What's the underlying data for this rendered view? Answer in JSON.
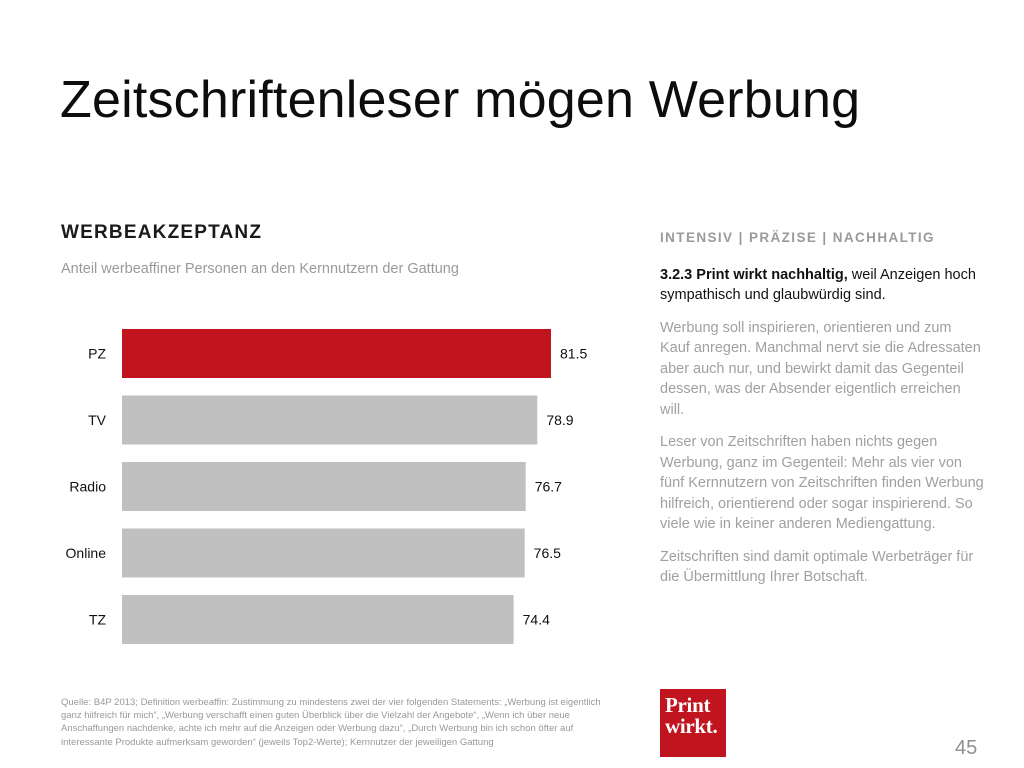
{
  "slide": {
    "title": "Zeitschriftenleser mögen Werbung",
    "page_number": "45"
  },
  "chart_section": {
    "heading": "WERBEAKZEPTANZ",
    "subtitle": "Anteil werbeaffiner Personen an den Kernnutzern der Gattung"
  },
  "chart_data": {
    "type": "bar",
    "orientation": "horizontal",
    "title": "WERBEAKZEPTANZ",
    "subtitle": "Anteil werbeaffiner Personen an den Kernnutzern der Gattung",
    "categories": [
      "PZ",
      "TV",
      "Radio",
      "Online",
      "TZ"
    ],
    "values": [
      81.5,
      78.9,
      76.7,
      76.5,
      74.4
    ],
    "highlight_index": 0,
    "grid": false,
    "legend": "none"
  },
  "colors": {
    "highlight": "#c0141f",
    "bar": "#c0c0c0",
    "logo_bg": "#c0141f"
  },
  "right_column": {
    "tagline": "INTENSIV | PRÄZISE | NACHHALTIG",
    "lead_bold": "3.2.3 Print wirkt nachhaltig,",
    "lead_rest": " weil Anzeigen hoch sympathisch und glaubwürdig sind.",
    "paragraphs": [
      "Werbung soll inspirieren, orientieren und zum Kauf anregen. Manchmal nervt sie die Adressaten aber auch nur, und bewirkt damit das Gegenteil dessen, was der Absender eigentlich erreichen will.",
      "Leser von Zeitschriften haben nichts gegen Werbung, ganz im Gegenteil: Mehr als vier von fünf Kernnutzern von Zeitschriften finden Werbung hilfreich, orientierend oder sogar inspirierend. So viele wie in keiner anderen Mediengattung.",
      "Zeitschriften sind damit optimale Werbeträger für die Übermittlung Ihrer Botschaft."
    ]
  },
  "source_note": "Quelle: B4P 2013; Definition werbeaffin: Zustimmung zu mindestens zwei der vier folgenden Statements: „Werbung ist eigentlich ganz hilfreich für mich“, „Werbung verschafft einen guten Überblick über die Vielzahl der Angebote“, „Wenn ich über neue Anschaffungen nachdenke, achte ich mehr auf die Anzeigen oder Werbung dazu“, „Durch Werbung bin ich schon öfter auf interessante Produkte aufmerksam geworden“ (jeweils Top2-Werte); Kernnutzer der jeweiligen Gattung",
  "logo": {
    "line1": "Print",
    "line2": "wirkt."
  }
}
